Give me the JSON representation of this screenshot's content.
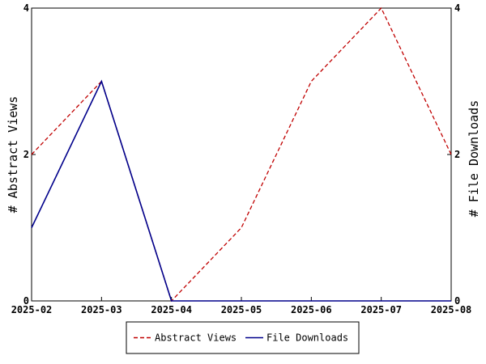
{
  "chart_data": {
    "type": "line",
    "categories": [
      "2025-02",
      "2025-03",
      "2025-04",
      "2025-05",
      "2025-06",
      "2025-07",
      "2025-08"
    ],
    "series": [
      {
        "name": "Abstract Views",
        "axis": "left",
        "color": "#c00000",
        "dash": true,
        "values": [
          2,
          3,
          0,
          1,
          3,
          4,
          2
        ]
      },
      {
        "name": "File Downloads",
        "axis": "right",
        "color": "#00008b",
        "dash": false,
        "values": [
          1,
          3,
          0,
          0,
          0,
          0,
          0
        ]
      }
    ],
    "ylabel_left": "# Abstract Views",
    "ylabel_right": "# File Downloads",
    "ylim_left": [
      0,
      4
    ],
    "ylim_right": [
      0,
      4
    ],
    "yticks_left": [
      0,
      2,
      4
    ],
    "yticks_right": [
      0,
      2,
      4
    ],
    "grid": false,
    "legend_position": "bottom-center"
  }
}
